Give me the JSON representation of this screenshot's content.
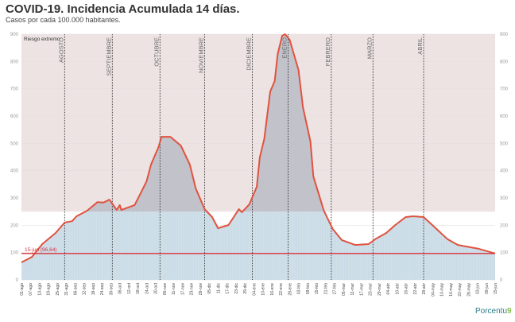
{
  "header": {
    "title": "COVID-19. Incidencia Acumulada 14 días.",
    "subtitle": "Casos por cada 100.000 habitantes."
  },
  "logo": {
    "text": "Porcentu"
  },
  "colors": {
    "line": "#e0523f",
    "fill_low": "#c9dbe6",
    "fill_high": "#c2c2cb",
    "risk_band": "#ede3e3",
    "ref_line": "#d9303a",
    "text": "#999999"
  },
  "chart_data": {
    "type": "area",
    "ylim": [
      0,
      900
    ],
    "yticks": [
      0,
      100,
      200,
      300,
      400,
      500,
      600,
      700,
      800,
      900
    ],
    "xlim": [
      "2020-08-01",
      "2021-06-15"
    ],
    "grid": true,
    "risk_band": {
      "label": "Riesgo extremo",
      "from": 250,
      "to": 900
    },
    "reference": {
      "label": "15-jun (96,64)",
      "value": 96.64
    },
    "month_markers": [
      {
        "label": "AGOSTO",
        "date": "2020-08-30"
      },
      {
        "label": "SEPTIEMBRE",
        "date": "2020-10-01"
      },
      {
        "label": "OCTUBRE",
        "date": "2020-11-02"
      },
      {
        "label": "NOVIEMBRE",
        "date": "2020-12-02"
      },
      {
        "label": "DICIEMBRE",
        "date": "2021-01-03"
      },
      {
        "label": "ENERO",
        "date": "2021-01-27"
      },
      {
        "label": "FEBRERO",
        "date": "2021-02-25"
      },
      {
        "label": "MARZO",
        "date": "2021-03-25"
      },
      {
        "label": "ABRIL",
        "date": "2021-04-28"
      }
    ],
    "xticks": [
      "01-ago",
      "07-ago",
      "13-ago",
      "19-ago",
      "25-ago",
      "31-ago",
      "06-sep",
      "12-sep",
      "18-sep",
      "24-sep",
      "30-sep",
      "06-oct",
      "12-oct",
      "18-oct",
      "24-oct",
      "30-oct",
      "05-nov",
      "11-nov",
      "17-nov",
      "23-nov",
      "29-nov",
      "05-dic",
      "11-dic",
      "17-dic",
      "23-dic",
      "29-dic",
      "04-ene",
      "10-ene",
      "16-ene",
      "22-ene",
      "28-ene",
      "03-feb",
      "09-feb",
      "15-feb",
      "21-feb",
      "27-feb",
      "05-mar",
      "11-mar",
      "17-mar",
      "23-mar",
      "29-mar",
      "04-abr",
      "10-abr",
      "16-abr",
      "22-abr",
      "28-abr",
      "04-may",
      "10-may",
      "16-may",
      "22-may",
      "28-may",
      "03-jun",
      "09-jun",
      "15-jun"
    ],
    "series": [
      {
        "points": [
          [
            "2020-08-01",
            64
          ],
          [
            "2020-08-08",
            84
          ],
          [
            "2020-08-15",
            131
          ],
          [
            "2020-08-24",
            172
          ],
          [
            "2020-08-30",
            210
          ],
          [
            "2020-09-04",
            215
          ],
          [
            "2020-09-07",
            233
          ],
          [
            "2020-09-14",
            253
          ],
          [
            "2020-09-21",
            285
          ],
          [
            "2020-09-25",
            283
          ],
          [
            "2020-09-29",
            294
          ],
          [
            "2020-10-04",
            256
          ],
          [
            "2020-10-06",
            274
          ],
          [
            "2020-10-07",
            256
          ],
          [
            "2020-10-16",
            274
          ],
          [
            "2020-10-20",
            317
          ],
          [
            "2020-10-24",
            361
          ],
          [
            "2020-10-27",
            423
          ],
          [
            "2020-11-01",
            486
          ],
          [
            "2020-11-03",
            524
          ],
          [
            "2020-11-09",
            524
          ],
          [
            "2020-11-16",
            492
          ],
          [
            "2020-11-22",
            423
          ],
          [
            "2020-11-26",
            335
          ],
          [
            "2020-12-02",
            259
          ],
          [
            "2020-12-07",
            230
          ],
          [
            "2020-12-11",
            189
          ],
          [
            "2020-12-18",
            201
          ],
          [
            "2020-12-25",
            259
          ],
          [
            "2020-12-27",
            248
          ],
          [
            "2021-01-01",
            277
          ],
          [
            "2021-01-06",
            341
          ],
          [
            "2021-01-08",
            449
          ],
          [
            "2021-01-11",
            516
          ],
          [
            "2021-01-15",
            690
          ],
          [
            "2021-01-18",
            728
          ],
          [
            "2021-01-20",
            827
          ],
          [
            "2021-01-23",
            894
          ],
          [
            "2021-01-25",
            900
          ],
          [
            "2021-01-28",
            880
          ],
          [
            "2021-02-03",
            769
          ],
          [
            "2021-02-06",
            632
          ],
          [
            "2021-02-11",
            507
          ],
          [
            "2021-02-13",
            379
          ],
          [
            "2021-02-20",
            253
          ],
          [
            "2021-02-26",
            186
          ],
          [
            "2021-03-04",
            146
          ],
          [
            "2021-03-13",
            128
          ],
          [
            "2021-03-22",
            131
          ],
          [
            "2021-03-27",
            151
          ],
          [
            "2021-04-03",
            172
          ],
          [
            "2021-04-09",
            201
          ],
          [
            "2021-04-16",
            230
          ],
          [
            "2021-04-21",
            233
          ],
          [
            "2021-04-28",
            230
          ],
          [
            "2021-05-05",
            195
          ],
          [
            "2021-05-14",
            149
          ],
          [
            "2021-05-21",
            128
          ],
          [
            "2021-06-04",
            114
          ],
          [
            "2021-06-15",
            96.64
          ]
        ]
      }
    ]
  }
}
